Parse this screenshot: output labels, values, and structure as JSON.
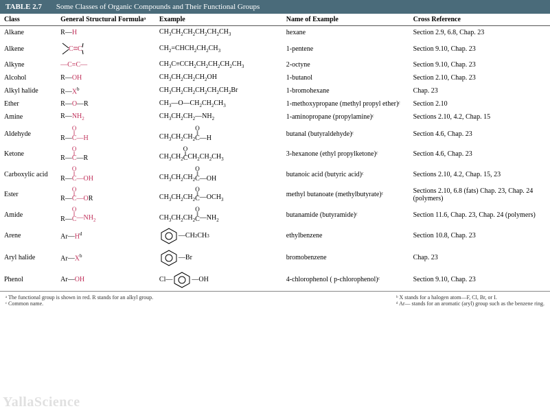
{
  "table_number": "TABLE 2.7",
  "table_title": "Some Classes of Organic Compounds and Their Functional Groups",
  "columns": [
    "Class",
    "General Structural Formulaᵃ",
    "Example",
    "Name of Example",
    "Cross Reference"
  ],
  "rows": [
    {
      "class": "Alkane",
      "formula_html": "R—<span class='red'>H</span>",
      "example_html": "CH<sub>3</sub>CH<sub>2</sub>CH<sub>2</sub>CH<sub>2</sub>CH<sub>2</sub>CH<sub>3</sub>",
      "name": "hexane",
      "cross": "Section 2.9, 6.8, Chap. 23"
    },
    {
      "class": "Alkene",
      "formula_svg": "alkene",
      "example_html": "CH<sub>2</sub>=CHCH<sub>2</sub>CH<sub>2</sub>CH<sub>3</sub>",
      "name": "1-pentene",
      "cross": "Section 9.10, Chap. 23"
    },
    {
      "class": "Alkyne",
      "formula_html": "<span class='red'>—C≡C—</span>",
      "example_html": "CH<sub>3</sub>C≡CCH<sub>2</sub>CH<sub>2</sub>CH<sub>2</sub>CH<sub>2</sub>CH<sub>3</sub>",
      "name": "2-octyne",
      "cross": "Section 9.10, Chap. 23"
    },
    {
      "class": "Alcohol",
      "formula_html": "R—<span class='red'>OH</span>",
      "example_html": "CH<sub>3</sub>CH<sub>2</sub>CH<sub>2</sub>CH<sub>2</sub>OH",
      "name": "1-butanol",
      "cross": "Section 2.10, Chap. 23"
    },
    {
      "class": "Alkyl halide",
      "formula_html": "R—<span class='red'>X</span><sup>b</sup>",
      "example_html": "CH<sub>3</sub>CH<sub>2</sub>CH<sub>2</sub>CH<sub>2</sub>CH<sub>2</sub>CH<sub>2</sub>Br",
      "name": "1-bromohexane",
      "cross": "Chap. 23"
    },
    {
      "class": "Ether",
      "formula_html": "R—<span class='red'>O</span>—R",
      "example_html": "CH<sub>3</sub>—O—CH<sub>2</sub>CH<sub>2</sub>CH<sub>3</sub>",
      "name": "1-methoxypropane (methyl propyl ether)ᶜ",
      "cross": "Section 2.10"
    },
    {
      "class": "Amine",
      "formula_html": "R—<span class='red'>NH<sub>2</sub></span>",
      "example_html": "CH<sub>3</sub>CH<sub>2</sub>CH<sub>2</sub>—NH<sub>2</sub>",
      "name": "1-aminopropane (propylamine)ᶜ",
      "cross": "Sections 2.10, 4.2, Chap. 15"
    },
    {
      "class": "Aldehyde",
      "formula_carbonyl": {
        "left": "R—",
        "right": "—H",
        "right_red": true
      },
      "example_carbonyl": {
        "left": "CH<sub>3</sub>CH<sub>2</sub>CH<sub>2</sub>",
        "right": "—H"
      },
      "name": "butanal (butyraldehyde)ᶜ",
      "cross": "Section 4.6, Chap. 23"
    },
    {
      "class": "Ketone",
      "formula_carbonyl": {
        "left": "R—",
        "right": "—R"
      },
      "example_carbonyl": {
        "left": "CH<sub>3</sub>CH<sub>2</sub>",
        "right": "CH<sub>2</sub>CH<sub>2</sub>CH<sub>3</sub>"
      },
      "name": "3-hexanone (ethyl propylketone)ᶜ",
      "cross": "Section 4.6, Chap. 23"
    },
    {
      "class": "Carboxylic acid",
      "formula_carbonyl": {
        "left": "R—",
        "right": "—OH",
        "right_red": true
      },
      "example_carbonyl": {
        "left": "CH<sub>3</sub>CH<sub>2</sub>CH<sub>2</sub>",
        "right": "—OH"
      },
      "name": "butanoic acid (butyric acid)ᶜ",
      "cross": "Sections 2.10, 4.2, Chap. 15, 23"
    },
    {
      "class": "Ester",
      "formula_carbonyl": {
        "left": "R—",
        "right": "—O",
        "right_red": true,
        "tail": "R"
      },
      "example_carbonyl": {
        "left": "CH<sub>3</sub>CH<sub>2</sub>CH<sub>2</sub>",
        "right": "—OCH<sub>3</sub>"
      },
      "name": "methyl butanoate (methylbutyrate)ᶜ",
      "cross": "Sections 2.10, 6.8 (fats) Chap. 23, Chap. 24 (polymers)"
    },
    {
      "class": "Amide",
      "formula_carbonyl": {
        "left": "R—",
        "right": "—NH<sub>2</sub>",
        "right_red": true
      },
      "example_carbonyl": {
        "left": "CH<sub>3</sub>CH<sub>2</sub>CH<sub>2</sub>",
        "right": "—NH<sub>2</sub>"
      },
      "name": "butanamide (butyramide)ᶜ",
      "cross": "Section 11.6, Chap. 23, Chap. 24 (polymers)"
    },
    {
      "class": "Arene",
      "formula_html": "Ar—<span class='red'>H</span><sup>d</sup>",
      "example_ring": {
        "left": "",
        "right": "—CH<sub>2</sub>CH<sub>3</sub>"
      },
      "name": "ethylbenzene",
      "cross": "Section 10.8, Chap. 23"
    },
    {
      "class": "Aryl halide",
      "formula_html": "Ar—<span class='red'>X</span><sup>b</sup>",
      "example_ring": {
        "left": "",
        "right": "—Br"
      },
      "name": "bromobenzene",
      "cross": "Chap. 23"
    },
    {
      "class": "Phenol",
      "formula_html": "Ar—<span class='red'>OH</span>",
      "example_ring": {
        "left": "Cl—",
        "right": "—OH"
      },
      "name": "4-chlorophenol ( p-chlorophenol)ᶜ",
      "cross": "Section 9.10, Chap. 23"
    }
  ],
  "footnotes": {
    "a": "ᵃ The functional group is shown in red. R stands for an alkyl group.",
    "c": "ᶜ Common name.",
    "b": "ᵇ X stands for a halogen atom—F, Cl, Br, or I.",
    "d": "ᵈ Ar— stands for an aromatic (aryl) group such as the benzene ring."
  },
  "watermark": "YallaScience",
  "colors": {
    "header_bg": "#4a6b7a",
    "red": "#c0305a"
  }
}
